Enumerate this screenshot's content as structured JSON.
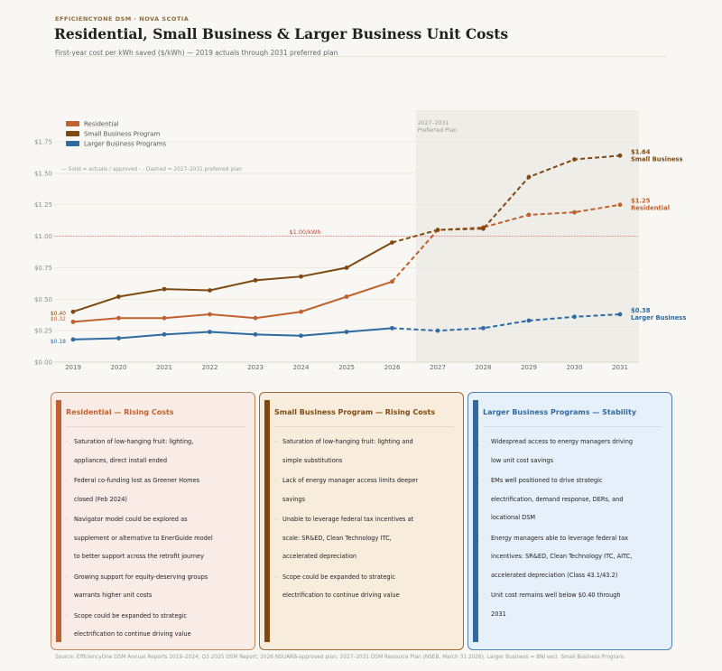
{
  "header": {
    "eyebrow": "EFFICIENCYONE DSM · NOVA SCOTIA",
    "title": "Residential, Small Business & Larger Business Unit Costs",
    "subtitle": "First-year cost per kWh saved ($/kWh) — 2019 actuals through 2031 preferred plan"
  },
  "chart_data": {
    "type": "line",
    "x": [
      "2019",
      "2020",
      "2021",
      "2022",
      "2023",
      "2024",
      "2025",
      "2026",
      "2027",
      "2028",
      "2029",
      "2030",
      "2031"
    ],
    "ylim": [
      0,
      2.0
    ],
    "yticks": [
      "$0.00",
      "$0.25",
      "$0.50",
      "$0.75",
      "$1.00",
      "$1.25",
      "$1.50",
      "$1.75"
    ],
    "ytick_values": [
      0,
      0.25,
      0.5,
      0.75,
      1.0,
      1.25,
      1.5,
      1.75
    ],
    "grid": true,
    "legend_position": "top-left",
    "legend_note": "— Solid = actuals / approved   - - Dashed = 2027–2031 preferred plan",
    "shaded_region": {
      "from": "2026.5",
      "to": "2031.4",
      "label_1": "2027–2031",
      "label_2": "Preferred Plan"
    },
    "reference_line": {
      "value": 1.0,
      "label": "$1.00/kWh",
      "color": "#d9534f"
    },
    "actual_until_index": 7,
    "series": [
      {
        "name": "Residential",
        "color": "#c0622f",
        "values": [
          0.32,
          0.35,
          0.35,
          0.38,
          0.35,
          0.4,
          0.52,
          0.64,
          1.05,
          1.07,
          1.17,
          1.19,
          1.25
        ],
        "start_label": "$0.32",
        "end_label_value": "$1.25",
        "end_label_name": "Residential"
      },
      {
        "name": "Small Business Program",
        "color": "#7f4a12",
        "values": [
          0.4,
          0.52,
          0.58,
          0.57,
          0.65,
          0.68,
          0.75,
          0.95,
          1.05,
          1.06,
          1.47,
          1.61,
          1.64
        ],
        "start_label": "$0.40",
        "end_label_value": "$1.64",
        "end_label_name": "Small Business"
      },
      {
        "name": "Larger Business Programs",
        "color": "#2f6aa0",
        "values": [
          0.18,
          0.19,
          0.22,
          0.24,
          0.22,
          0.21,
          0.24,
          0.27,
          0.25,
          0.27,
          0.33,
          0.36,
          0.38
        ],
        "start_label": "$0.18",
        "end_label_value": "$0.38",
        "end_label_name": "Larger Business"
      }
    ]
  },
  "cards": [
    {
      "title": "Residential — Rising Costs",
      "color": "#c0622f",
      "bg": "#f9ebe6",
      "border": "#c0855f",
      "items": [
        [
          "Saturation of low-hanging fruit: lighting,",
          "appliances, direct install ended"
        ],
        [
          "Federal co-funding lost as Greener Homes",
          "closed (Feb 2024)"
        ],
        [
          "Navigator model could be explored as",
          "supplement or alternative to EnerGuide model",
          "to better support across the retrofit journey"
        ],
        [
          "Growing support for equity-deserving groups",
          "warrants higher unit costs"
        ],
        [
          "Scope could be expanded to strategic",
          "electrification to continue driving value"
        ]
      ]
    },
    {
      "title": "Small Business Program — Rising Costs",
      "color": "#7f4a12",
      "bg": "#f8ecdc",
      "border": "#9a6a3a",
      "items": [
        [
          "Saturation of low-hanging fruit: lighting and",
          "simple substitutions"
        ],
        [
          "Lack of energy manager access limits deeper",
          "savings"
        ],
        [
          "Unable to leverage federal tax incentives at",
          "scale: SR&ED, Clean Technology ITC,",
          "accelerated depreciation"
        ],
        [
          "Scope could be expanded to strategic",
          "electrification to continue driving value"
        ]
      ]
    },
    {
      "title": "Larger Business Programs — Stability",
      "color": "#2f6aa0",
      "bg": "#e6f0fa",
      "border": "#4f7fae",
      "items": [
        [
          "Widespread access to energy managers driving",
          "low unit cost savings"
        ],
        [
          "EMs well positioned to drive strategic",
          "electrification, demand response, DERs, and",
          "locational DSM"
        ],
        [
          "Energy managers able to leverage federal tax",
          "incentives: SR&ED, Clean Technology ITC, AITC,",
          "accelerated depreciation (Class 43.1/43.2)"
        ],
        [
          "Unit cost remains well below $0.40 through",
          "2031"
        ]
      ]
    }
  ],
  "footer": "Source: EfficiencyOne DSM Annual Reports 2019–2024; Q3 2025 DSM Report; 2026 NSUARB-approved plan; 2027–2031 DSM Resource Plan (NSEB, March 31 2026). Larger Business = BNI excl. Small Business Program."
}
